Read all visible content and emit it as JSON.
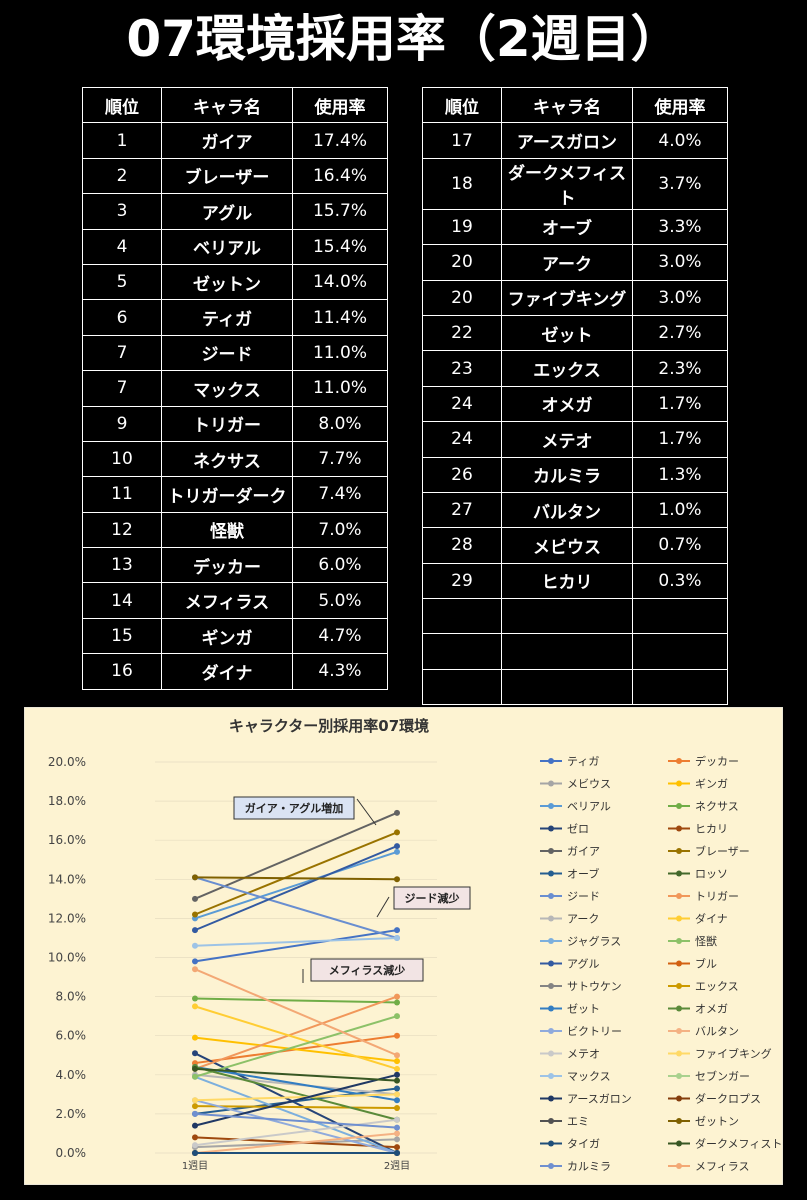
{
  "title": "07環境採用率（2週目）",
  "table_header": [
    "順位",
    "キャラ名",
    "使用率"
  ],
  "tables": [
    {
      "rows": [
        [
          "1",
          "ガイア",
          "17.4%"
        ],
        [
          "2",
          "ブレーザー",
          "16.4%"
        ],
        [
          "3",
          "アグル",
          "15.7%"
        ],
        [
          "4",
          "ベリアル",
          "15.4%"
        ],
        [
          "5",
          "ゼットン",
          "14.0%"
        ],
        [
          "6",
          "ティガ",
          "11.4%"
        ],
        [
          "7",
          "ジード",
          "11.0%"
        ],
        [
          "7",
          "マックス",
          "11.0%"
        ],
        [
          "9",
          "トリガー",
          "8.0%"
        ],
        [
          "10",
          "ネクサス",
          "7.7%"
        ],
        [
          "11",
          "トリガーダーク",
          "7.4%"
        ],
        [
          "12",
          "怪獣",
          "7.0%"
        ],
        [
          "13",
          "デッカー",
          "6.0%"
        ],
        [
          "14",
          "メフィラス",
          "5.0%"
        ],
        [
          "15",
          "ギンガ",
          "4.7%"
        ],
        [
          "16",
          "ダイナ",
          "4.3%"
        ]
      ]
    },
    {
      "rows": [
        [
          "17",
          "アースガロン",
          "4.0%"
        ],
        [
          "18",
          "ダークメフィスト",
          "3.7%"
        ],
        [
          "19",
          "オーブ",
          "3.3%"
        ],
        [
          "20",
          "アーク",
          "3.0%"
        ],
        [
          "20",
          "ファイブキング",
          "3.0%"
        ],
        [
          "22",
          "ゼット",
          "2.7%"
        ],
        [
          "23",
          "エックス",
          "2.3%"
        ],
        [
          "24",
          "オメガ",
          "1.7%"
        ],
        [
          "24",
          "メテオ",
          "1.7%"
        ],
        [
          "26",
          "カルミラ",
          "1.3%"
        ],
        [
          "27",
          "バルタン",
          "1.0%"
        ],
        [
          "28",
          "メビウス",
          "0.7%"
        ],
        [
          "29",
          "ヒカリ",
          "0.3%"
        ]
      ]
    }
  ],
  "chart_data": {
    "type": "line",
    "title": "キャラクター別採用率07環境",
    "categories": [
      "1週目",
      "2週目"
    ],
    "ylim": [
      0,
      20
    ],
    "yticks": [
      {
        "value": 0,
        "label": "0.0%"
      },
      {
        "value": 2,
        "label": "2.0%"
      },
      {
        "value": 4,
        "label": "4.0%"
      },
      {
        "value": 6,
        "label": "6.0%"
      },
      {
        "value": 8,
        "label": "8.0%"
      },
      {
        "value": 10,
        "label": "10.0%"
      },
      {
        "value": 12,
        "label": "12.0%"
      },
      {
        "value": 14,
        "label": "14.0%"
      },
      {
        "value": 16,
        "label": "16.0%"
      },
      {
        "value": 18,
        "label": "18.0%"
      },
      {
        "value": 20,
        "label": "20.0%"
      }
    ],
    "annotations": [
      "ガイア・アグル増加",
      "ジード減少",
      "メフィラス減少"
    ],
    "series": [
      {
        "name": "ティガ",
        "color": "#4472c4",
        "values": [
          9.8,
          11.4
        ]
      },
      {
        "name": "デッカー",
        "color": "#ed7d31",
        "values": [
          4.6,
          6.0
        ]
      },
      {
        "name": "メビウス",
        "color": "#a5a5a5",
        "values": [
          0.3,
          0.7
        ]
      },
      {
        "name": "ギンガ",
        "color": "#ffc000",
        "values": [
          5.9,
          4.7
        ]
      },
      {
        "name": "ベリアル",
        "color": "#5b9bd5",
        "values": [
          12.0,
          15.4
        ]
      },
      {
        "name": "ネクサス",
        "color": "#70ad47",
        "values": [
          7.9,
          7.7
        ]
      },
      {
        "name": "ゼロ",
        "color": "#264478",
        "values": [
          5.1,
          0
        ]
      },
      {
        "name": "ヒカリ",
        "color": "#9e480e",
        "values": [
          0.8,
          0.3
        ]
      },
      {
        "name": "ガイア",
        "color": "#636363",
        "values": [
          13.0,
          17.4
        ]
      },
      {
        "name": "ブレーザー",
        "color": "#997300",
        "values": [
          12.2,
          16.4
        ]
      },
      {
        "name": "オーブ",
        "color": "#255e91",
        "values": [
          2.0,
          3.3
        ]
      },
      {
        "name": "ロッソ",
        "color": "#43682b",
        "values": [
          0,
          0
        ]
      },
      {
        "name": "ジード",
        "color": "#698ed0",
        "values": [
          14.1,
          11.0
        ]
      },
      {
        "name": "トリガー",
        "color": "#f1975a",
        "values": [
          4.3,
          8.0
        ]
      },
      {
        "name": "アーク",
        "color": "#b7b7b7",
        "values": [
          4.0,
          3.0
        ]
      },
      {
        "name": "ダイナ",
        "color": "#ffcd33",
        "values": [
          7.5,
          4.3
        ]
      },
      {
        "name": "ジャグラス",
        "color": "#7cafdd",
        "values": [
          3.9,
          0
        ]
      },
      {
        "name": "怪獣",
        "color": "#8cc168",
        "values": [
          3.9,
          7.0
        ]
      },
      {
        "name": "アグル",
        "color": "#335aa1",
        "values": [
          11.4,
          15.7
        ]
      },
      {
        "name": "ブル",
        "color": "#d26012",
        "values": [
          0,
          0
        ]
      },
      {
        "name": "サトウケン",
        "color": "#848484",
        "values": [
          0,
          0
        ]
      },
      {
        "name": "エックス",
        "color": "#cc9a00",
        "values": [
          2.4,
          2.3
        ]
      },
      {
        "name": "ゼット",
        "color": "#327dc2",
        "values": [
          4.4,
          2.7
        ]
      },
      {
        "name": "オメガ",
        "color": "#5a8a39",
        "values": [
          4.4,
          1.7
        ]
      },
      {
        "name": "ビクトリー",
        "color": "#8faadc",
        "values": [
          2.7,
          0
        ]
      },
      {
        "name": "バルタン",
        "color": "#f4b183",
        "values": [
          0,
          1.0
        ]
      },
      {
        "name": "メテオ",
        "color": "#c9c9c9",
        "values": [
          0.4,
          1.7
        ]
      },
      {
        "name": "ファイブキング",
        "color": "#ffd966",
        "values": [
          2.7,
          3.0
        ]
      },
      {
        "name": "マックス",
        "color": "#9dc3e6",
        "values": [
          10.6,
          11.0
        ]
      },
      {
        "name": "セブンガー",
        "color": "#a9d18e",
        "values": [
          0,
          0
        ]
      },
      {
        "name": "アースガロン",
        "color": "#203864",
        "values": [
          1.4,
          4.0
        ]
      },
      {
        "name": "ダークロプス",
        "color": "#843c0c",
        "values": [
          0,
          0
        ]
      },
      {
        "name": "エミ",
        "color": "#525252",
        "values": [
          0,
          0
        ]
      },
      {
        "name": "ゼットン",
        "color": "#7f6000",
        "values": [
          14.1,
          14.0
        ]
      },
      {
        "name": "タイガ",
        "color": "#1f4e79",
        "values": [
          0,
          0
        ]
      },
      {
        "name": "ダークメフィスト",
        "color": "#375623",
        "values": [
          4.3,
          3.7
        ]
      },
      {
        "name": "カルミラ",
        "color": "#6f8fcf",
        "values": [
          2.0,
          1.3
        ]
      },
      {
        "name": "メフィラス",
        "color": "#f3a875",
        "values": [
          9.4,
          5.0
        ]
      }
    ]
  }
}
